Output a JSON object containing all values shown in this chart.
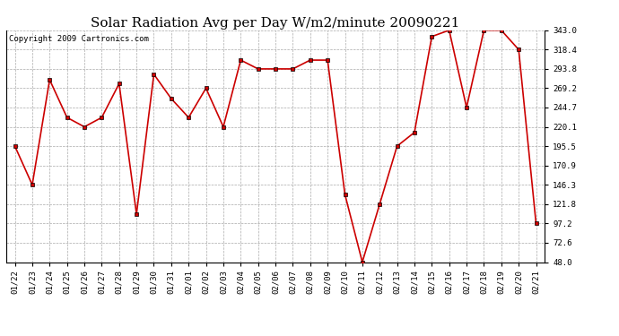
{
  "title": "Solar Radiation Avg per Day W/m2/minute 20090221",
  "copyright": "Copyright 2009 Cartronics.com",
  "dates": [
    "01/22",
    "01/23",
    "01/24",
    "01/25",
    "01/26",
    "01/27",
    "01/28",
    "01/29",
    "01/30",
    "01/31",
    "02/01",
    "02/02",
    "02/03",
    "02/04",
    "02/05",
    "02/06",
    "02/07",
    "02/08",
    "02/09",
    "02/10",
    "02/11",
    "02/12",
    "02/13",
    "02/14",
    "02/15",
    "02/16",
    "02/17",
    "02/18",
    "02/19",
    "02/20",
    "02/21"
  ],
  "values": [
    195.5,
    146.3,
    280.0,
    232.0,
    220.1,
    232.0,
    275.0,
    109.0,
    287.0,
    256.0,
    232.0,
    269.2,
    220.1,
    305.0,
    293.8,
    293.8,
    293.8,
    305.0,
    305.0,
    134.0,
    48.0,
    121.8,
    195.5,
    213.0,
    335.0,
    343.0,
    244.7,
    343.0,
    343.0,
    318.4,
    97.2
  ],
  "ylim": [
    48.0,
    343.0
  ],
  "yticks": [
    48.0,
    72.6,
    97.2,
    121.8,
    146.3,
    170.9,
    195.5,
    220.1,
    244.7,
    269.2,
    293.8,
    318.4,
    343.0
  ],
  "line_color": "#cc0000",
  "marker": "s",
  "marker_size": 2.5,
  "marker_color": "#000000",
  "grid_color": "#aaaaaa",
  "bg_color": "#ffffff",
  "title_fontsize": 11,
  "tick_fontsize": 6.5,
  "copyright_fontsize": 6.5
}
